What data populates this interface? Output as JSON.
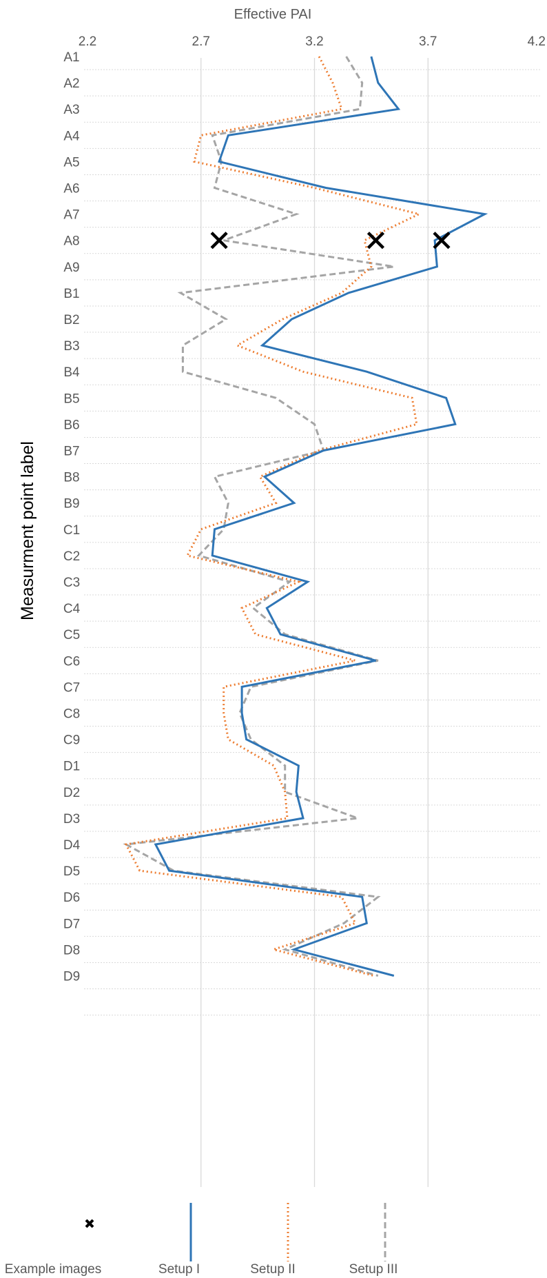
{
  "chart_data": {
    "type": "line",
    "orientation": "horizontal-values",
    "title": "",
    "xlabel": "Effective PAI",
    "ylabel": "Measurment point label",
    "xlim": [
      2.2,
      4.2
    ],
    "xticks": [
      "2.2",
      "2.7",
      "3.2",
      "3.7",
      "4.2"
    ],
    "grid": true,
    "legend_position": "bottom",
    "categories": [
      "A1",
      "A2",
      "A3",
      "A4",
      "A5",
      "A6",
      "A7",
      "A8",
      "A9",
      "B1",
      "B2",
      "B3",
      "B4",
      "B5",
      "B6",
      "B7",
      "B8",
      "B9",
      "C1",
      "C2",
      "C3",
      "C4",
      "C5",
      "C6",
      "C7",
      "C8",
      "C9",
      "D1",
      "D2",
      "D3",
      "D4",
      "D5",
      "D6",
      "D7",
      "D8",
      "D9"
    ],
    "series": [
      {
        "name": "Setup I",
        "color": "#2e75b6",
        "dash": "solid",
        "values": [
          3.45,
          3.48,
          3.57,
          2.82,
          2.78,
          3.25,
          3.95,
          3.73,
          3.74,
          3.35,
          3.1,
          2.97,
          3.43,
          3.78,
          3.82,
          3.24,
          2.98,
          3.11,
          2.76,
          2.75,
          3.17,
          2.99,
          3.05,
          3.47,
          2.88,
          2.88,
          2.9,
          3.13,
          3.12,
          3.15,
          2.5,
          2.56,
          3.41,
          3.43,
          3.11,
          3.55
        ]
      },
      {
        "name": "Setup II",
        "color": "#ed7d31",
        "dash": "dotted",
        "values": [
          3.22,
          3.28,
          3.32,
          2.7,
          2.67,
          3.2,
          3.66,
          3.42,
          3.45,
          3.32,
          3.06,
          2.86,
          3.15,
          3.63,
          3.65,
          3.22,
          2.96,
          3.03,
          2.7,
          2.64,
          3.13,
          2.88,
          2.94,
          3.38,
          2.8,
          2.8,
          2.82,
          3.02,
          3.07,
          3.08,
          2.37,
          2.43,
          3.32,
          3.38,
          3.02,
          3.46
        ]
      },
      {
        "name": "Setup III",
        "color": "#a5a5a5",
        "dash": "dashed",
        "values": [
          3.34,
          3.41,
          3.4,
          2.75,
          2.79,
          2.76,
          3.12,
          2.8,
          3.55,
          2.61,
          2.81,
          2.62,
          2.62,
          3.03,
          3.2,
          3.24,
          2.76,
          2.82,
          2.8,
          2.69,
          3.09,
          2.93,
          3.07,
          3.48,
          2.92,
          2.87,
          2.92,
          3.07,
          3.07,
          3.39,
          2.37,
          2.58,
          3.48,
          3.33,
          3.07,
          3.48
        ]
      }
    ],
    "markers": {
      "name": "Example images",
      "symbol": "x",
      "color": "#000000",
      "points": [
        {
          "category": "A8",
          "x": 2.78
        },
        {
          "category": "A8",
          "x": 3.47
        },
        {
          "category": "A8",
          "x": 3.76
        }
      ]
    }
  },
  "legend": {
    "items": [
      {
        "label": "Example images",
        "symbol": "x-marker"
      },
      {
        "label": "Setup I",
        "symbol": "solid-line"
      },
      {
        "label": "Setup II",
        "symbol": "dotted-line"
      },
      {
        "label": "Setup III",
        "symbol": "dashed-line"
      }
    ]
  },
  "colors": {
    "setup_i": "#2e75b6",
    "setup_ii": "#ed7d31",
    "setup_iii": "#a5a5a5",
    "gridline": "#d9d9d9",
    "text": "#595959"
  }
}
